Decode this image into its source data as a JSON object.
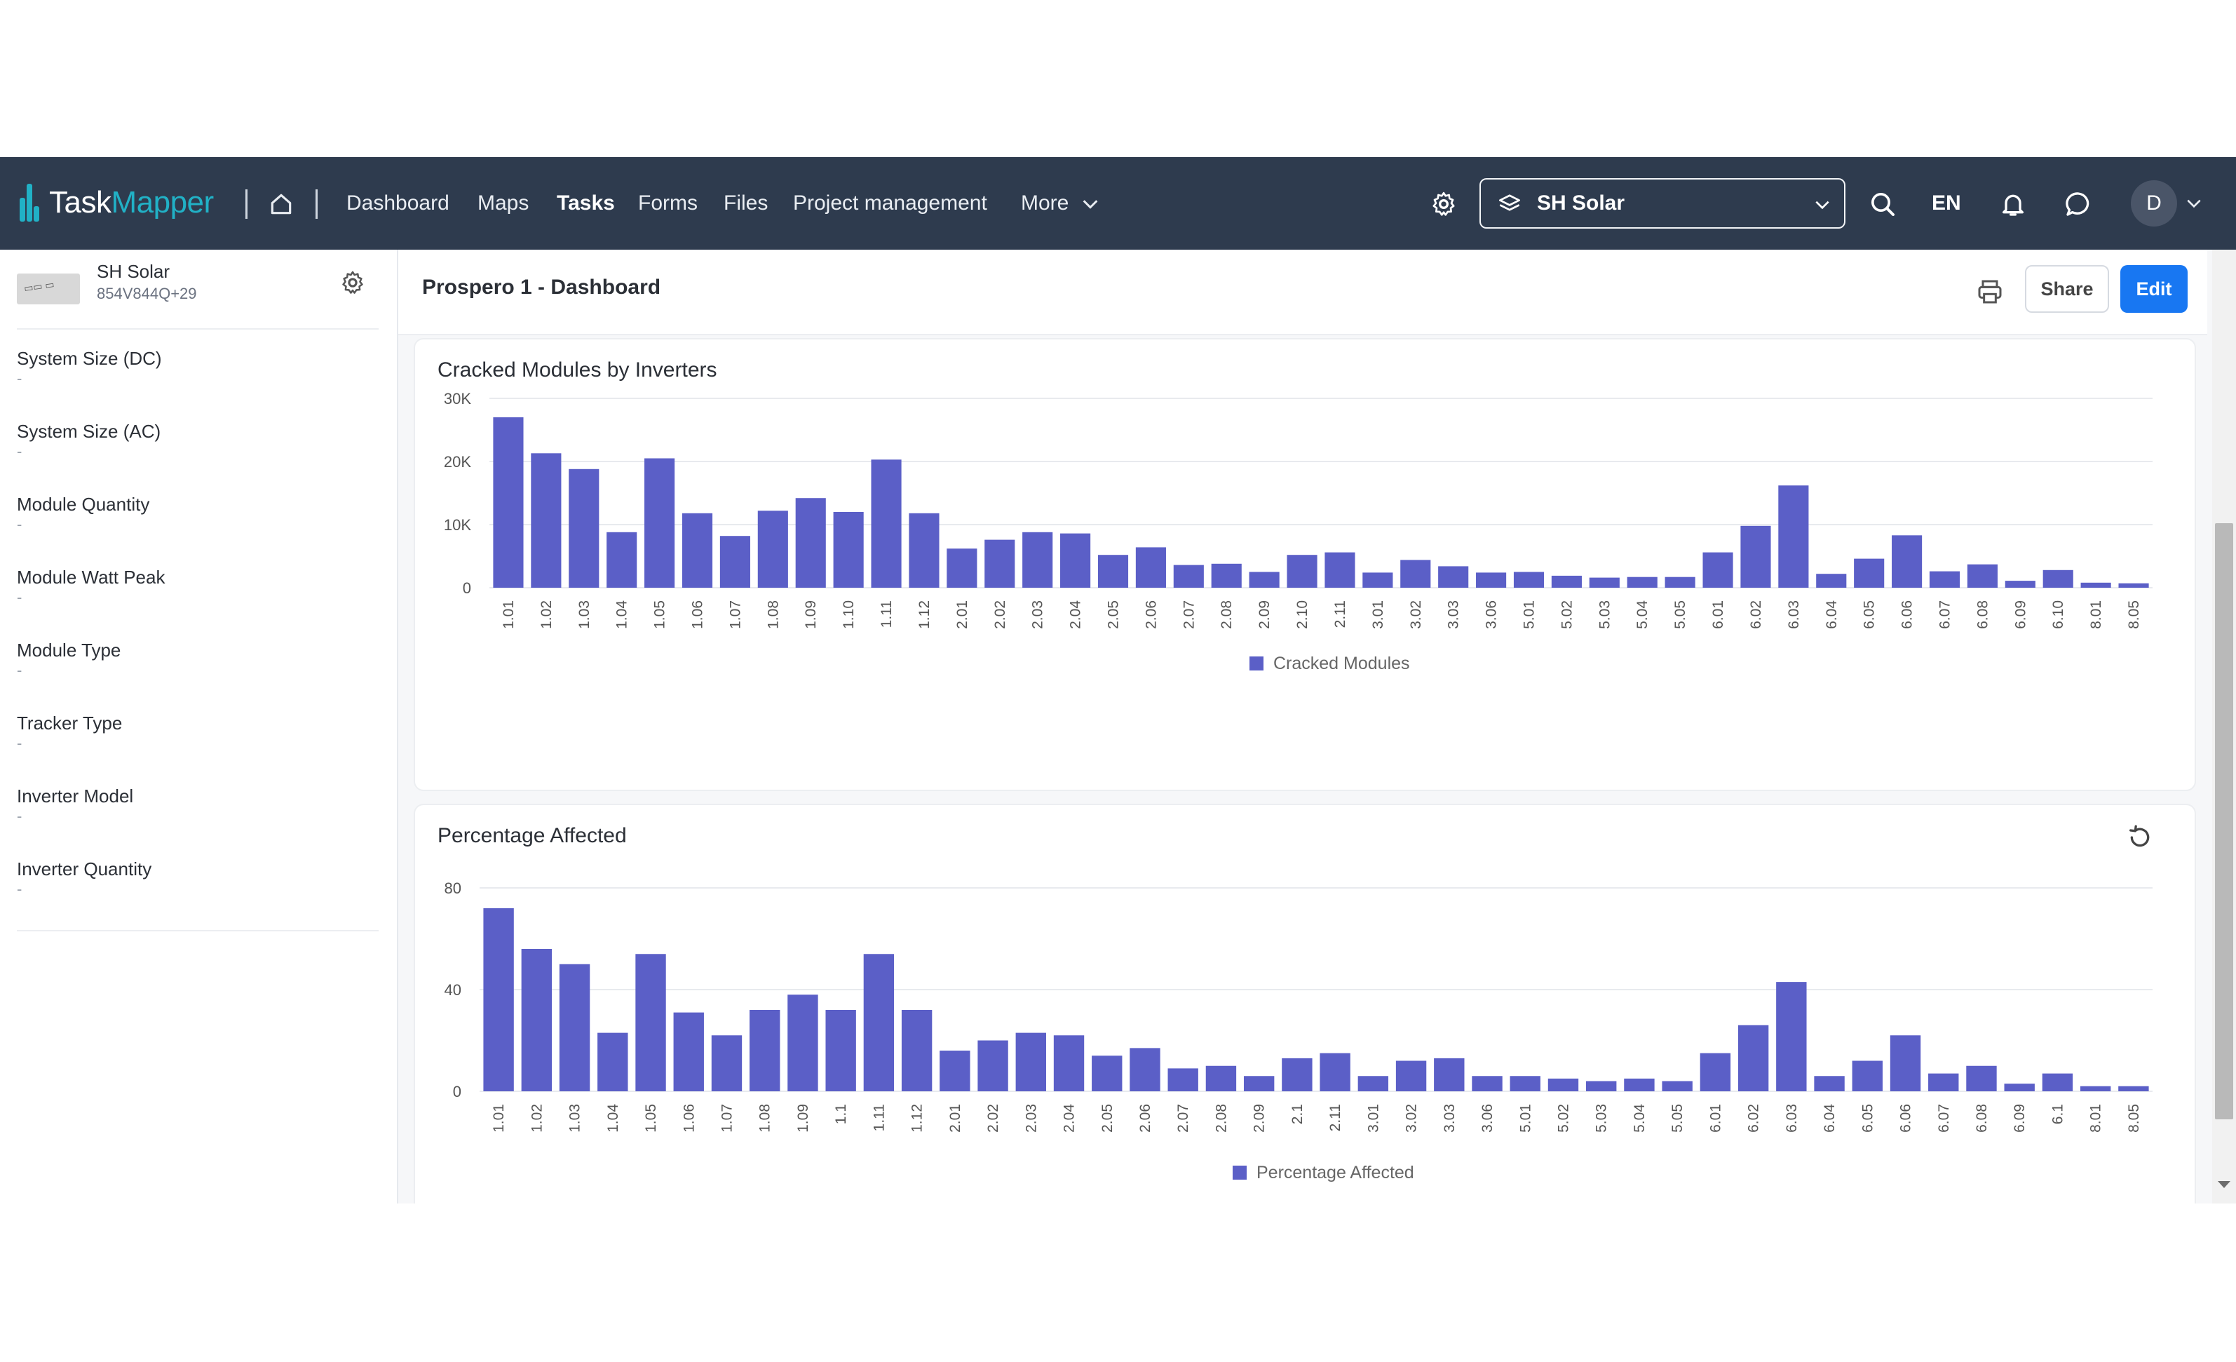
{
  "nav": {
    "logo_a": "Task",
    "logo_b": "Mapper",
    "links": [
      "Dashboard",
      "Maps",
      "Tasks",
      "Forms",
      "Files",
      "Project management",
      "More"
    ],
    "active": "Tasks",
    "project_selector": "SH Solar",
    "language": "EN",
    "avatar_initial": "D",
    "icons": [
      "home-icon",
      "gear-icon",
      "layers-icon",
      "chevron-down-icon",
      "search-icon",
      "bell-icon",
      "chat-icon"
    ]
  },
  "sidebar": {
    "project_name": "SH Solar",
    "project_code": "854V844Q+29",
    "properties": [
      {
        "label": "System Size (DC)",
        "value": "-"
      },
      {
        "label": "System Size (AC)",
        "value": "-"
      },
      {
        "label": "Module Quantity",
        "value": "-"
      },
      {
        "label": "Module Watt Peak",
        "value": "-"
      },
      {
        "label": "Module Type",
        "value": "-"
      },
      {
        "label": "Tracker Type",
        "value": "-"
      },
      {
        "label": "Inverter Model",
        "value": "-"
      },
      {
        "label": "Inverter Quantity",
        "value": "-"
      }
    ]
  },
  "header": {
    "title": "Prospero 1 - Dashboard",
    "share_label": "Share",
    "edit_label": "Edit"
  },
  "colors": {
    "bar": "#5b5fc7",
    "nav_bg": "#2e3b4e",
    "accent": "#1877f2",
    "logo": "#21b1c6"
  },
  "chart_data": [
    {
      "type": "bar",
      "title": "Cracked Modules by Inverters",
      "categories": [
        "1.01",
        "1.02",
        "1.03",
        "1.04",
        "1.05",
        "1.06",
        "1.07",
        "1.08",
        "1.09",
        "1.10",
        "1.11",
        "1.12",
        "2.01",
        "2.02",
        "2.03",
        "2.04",
        "2.05",
        "2.06",
        "2.07",
        "2.08",
        "2.09",
        "2.10",
        "2.11",
        "3.01",
        "3.02",
        "3.03",
        "3.06",
        "5.01",
        "5.02",
        "5.03",
        "5.04",
        "5.05",
        "6.01",
        "6.02",
        "6.03",
        "6.04",
        "6.05",
        "6.06",
        "6.07",
        "6.08",
        "6.09",
        "6.10",
        "8.01",
        "8.05"
      ],
      "series": [
        {
          "name": "Cracked Modules",
          "values": [
            27000,
            21300,
            18800,
            8800,
            20500,
            11800,
            8200,
            12200,
            14200,
            12000,
            20300,
            11800,
            6200,
            7600,
            8800,
            8600,
            5200,
            6400,
            3600,
            3800,
            2500,
            5200,
            5600,
            2400,
            4400,
            3400,
            2400,
            2500,
            1900,
            1600,
            1700,
            1700,
            5600,
            9800,
            16200,
            2200,
            4600,
            8300,
            2600,
            3700,
            1100,
            2800,
            800,
            700
          ]
        }
      ],
      "yticks": [
        "0",
        "10K",
        "20K",
        "30K"
      ],
      "ylim": [
        0,
        30000
      ],
      "grid": true,
      "legend": "bottom-center"
    },
    {
      "type": "bar",
      "title": "Percentage Affected",
      "categories": [
        "1.01",
        "1.02",
        "1.03",
        "1.04",
        "1.05",
        "1.06",
        "1.07",
        "1.08",
        "1.09",
        "1.1",
        "1.11",
        "1.12",
        "2.01",
        "2.02",
        "2.03",
        "2.04",
        "2.05",
        "2.06",
        "2.07",
        "2.08",
        "2.09",
        "2.1",
        "2.11",
        "3.01",
        "3.02",
        "3.03",
        "3.06",
        "5.01",
        "5.02",
        "5.03",
        "5.04",
        "5.05",
        "6.01",
        "6.02",
        "6.03",
        "6.04",
        "6.05",
        "6.06",
        "6.07",
        "6.08",
        "6.09",
        "6.1",
        "8.01",
        "8.05"
      ],
      "series": [
        {
          "name": "Percentage Affected",
          "values": [
            72,
            56,
            50,
            23,
            54,
            31,
            22,
            32,
            38,
            32,
            54,
            32,
            16,
            20,
            23,
            22,
            14,
            17,
            9,
            10,
            6,
            13,
            15,
            6,
            12,
            13,
            6,
            6,
            5,
            4,
            5,
            4,
            15,
            26,
            43,
            6,
            12,
            22,
            7,
            10,
            3,
            7,
            2,
            2
          ]
        }
      ],
      "yticks": [
        "0",
        "40",
        "80"
      ],
      "ylim": [
        0,
        80
      ],
      "grid": true,
      "legend": "bottom-center"
    }
  ]
}
